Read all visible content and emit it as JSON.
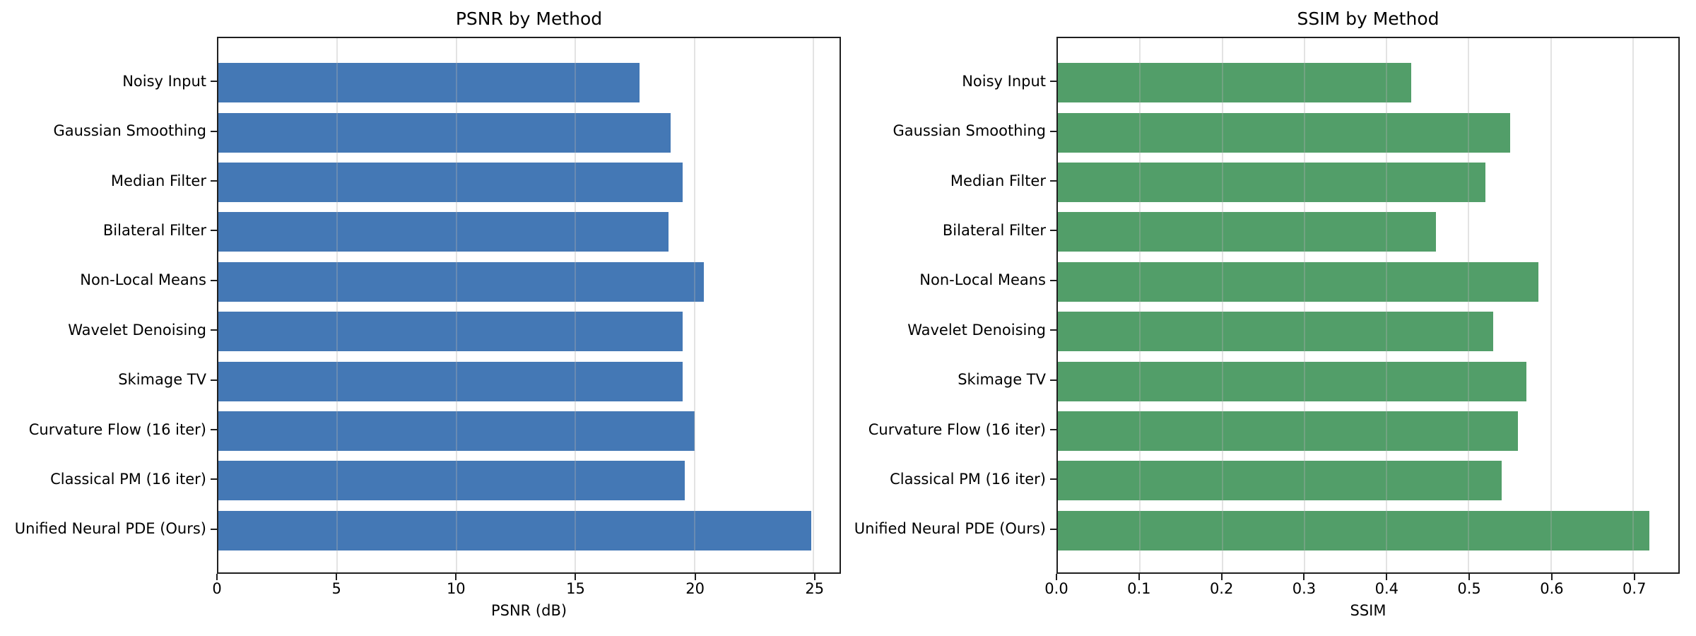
{
  "figure": {
    "background": "#ffffff",
    "spine_color": "#1f1f1f",
    "grid_color": "#e8e8e8"
  },
  "chart_data": [
    {
      "type": "bar",
      "orientation": "horizontal",
      "title": "PSNR by Method",
      "xlabel": "PSNR (dB)",
      "categories": [
        "Noisy Input",
        "Gaussian Smoothing",
        "Median Filter",
        "Bilateral Filter",
        "Non-Local Means",
        "Wavelet Denoising",
        "Skimage TV",
        "Curvature Flow (16 iter)",
        "Classical PM (16 iter)",
        "Unified Neural PDE (Ours)"
      ],
      "values": [
        17.7,
        19.0,
        19.5,
        18.9,
        20.4,
        19.5,
        19.5,
        20.0,
        19.6,
        24.9
      ],
      "xlim": [
        0,
        26.1
      ],
      "xticks": [
        0,
        5,
        10,
        15,
        20,
        25
      ],
      "xtick_labels": [
        "0",
        "5",
        "10",
        "15",
        "20",
        "25"
      ],
      "grid": "x",
      "legend": "none",
      "bar_color": "#4478b5"
    },
    {
      "type": "bar",
      "orientation": "horizontal",
      "title": "SSIM by Method",
      "xlabel": "SSIM",
      "categories": [
        "Noisy Input",
        "Gaussian Smoothing",
        "Median Filter",
        "Bilateral Filter",
        "Non-Local Means",
        "Wavelet Denoising",
        "Skimage TV",
        "Curvature Flow (16 iter)",
        "Classical PM (16 iter)",
        "Unified Neural PDE (Ours)"
      ],
      "values": [
        0.43,
        0.55,
        0.52,
        0.46,
        0.585,
        0.53,
        0.57,
        0.56,
        0.54,
        0.72
      ],
      "xlim": [
        0,
        0.755
      ],
      "xticks": [
        0.0,
        0.1,
        0.2,
        0.3,
        0.4,
        0.5,
        0.6,
        0.7
      ],
      "xtick_labels": [
        "0.0",
        "0.1",
        "0.2",
        "0.3",
        "0.4",
        "0.5",
        "0.6",
        "0.7"
      ],
      "grid": "x",
      "legend": "none",
      "bar_color": "#529e69"
    }
  ]
}
